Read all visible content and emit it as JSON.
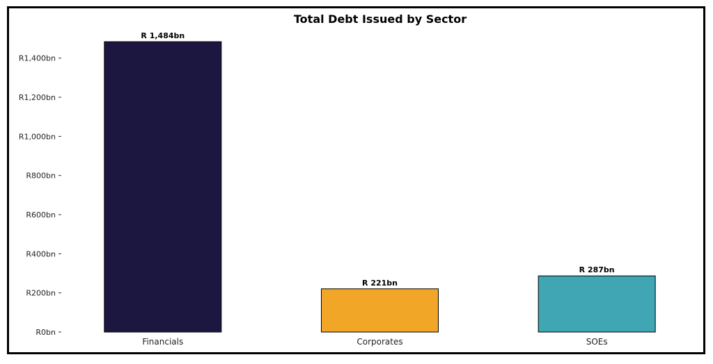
{
  "chart_data": {
    "type": "bar",
    "title": "Total Debt Issued by Sector",
    "xlabel": "",
    "ylabel": "",
    "categories": [
      "Financials",
      "Corporates",
      "SOEs"
    ],
    "values": [
      1484,
      221,
      287
    ],
    "value_labels": [
      "R 1,484bn",
      "R 221bn",
      "R 287bn"
    ],
    "colors": [
      "#1c1740",
      "#f2a627",
      "#40a6b3"
    ],
    "ylim": [
      0,
      1484
    ],
    "yticks": [
      0,
      200,
      400,
      600,
      800,
      1000,
      1200,
      1400
    ],
    "ytick_labels": [
      "R0bn",
      "R200bn",
      "R400bn",
      "R600bn",
      "R800bn",
      "R1,000bn",
      "R1,200bn",
      "R1,400bn"
    ],
    "grid": false,
    "legend": "none"
  }
}
